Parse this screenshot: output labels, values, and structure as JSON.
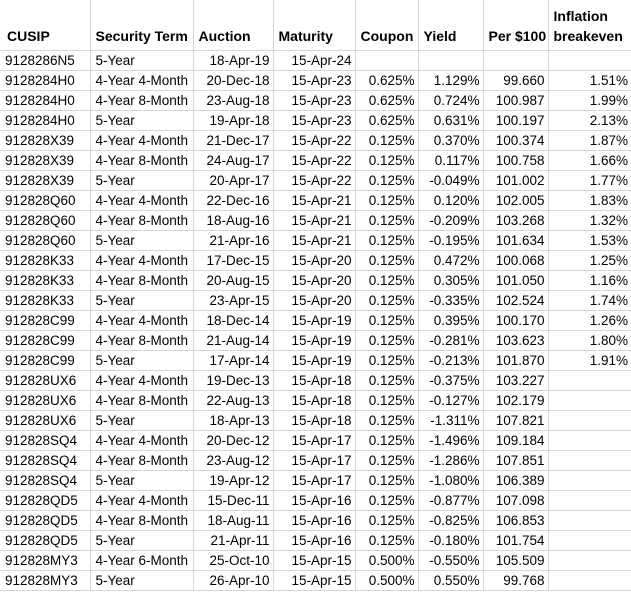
{
  "table": {
    "columns": [
      {
        "key": "cusip",
        "label": "CUSIP"
      },
      {
        "key": "term",
        "label": "Security Term"
      },
      {
        "key": "auction",
        "label": "Auction"
      },
      {
        "key": "maturity",
        "label": "Maturity"
      },
      {
        "key": "coupon",
        "label": "Coupon"
      },
      {
        "key": "yield",
        "label": "Yield"
      },
      {
        "key": "per100",
        "label": "Per $100"
      },
      {
        "key": "breakeven",
        "label": "Inflation breakeven"
      }
    ],
    "rows": [
      [
        "9128286N5",
        "5-Year",
        "18-Apr-19",
        "15-Apr-24",
        "",
        "",
        "",
        ""
      ],
      [
        "9128284H0",
        "4-Year 4-Month",
        "20-Dec-18",
        "15-Apr-23",
        "0.625%",
        "1.129%",
        "99.660",
        "1.51%"
      ],
      [
        "9128284H0",
        "4-Year 8-Month",
        "23-Aug-18",
        "15-Apr-23",
        "0.625%",
        "0.724%",
        "100.987",
        "1.99%"
      ],
      [
        "9128284H0",
        "5-Year",
        "19-Apr-18",
        "15-Apr-23",
        "0.625%",
        "0.631%",
        "100.197",
        "2.13%"
      ],
      [
        "912828X39",
        "4-Year 4-Month",
        "21-Dec-17",
        "15-Apr-22",
        "0.125%",
        "0.370%",
        "100.374",
        "1.87%"
      ],
      [
        "912828X39",
        "4-Year 8-Month",
        "24-Aug-17",
        "15-Apr-22",
        "0.125%",
        "0.117%",
        "100.758",
        "1.66%"
      ],
      [
        "912828X39",
        "5-Year",
        "20-Apr-17",
        "15-Apr-22",
        "0.125%",
        "-0.049%",
        "101.002",
        "1.77%"
      ],
      [
        "912828Q60",
        "4-Year 4-Month",
        "22-Dec-16",
        "15-Apr-21",
        "0.125%",
        "0.120%",
        "102.005",
        "1.83%"
      ],
      [
        "912828Q60",
        "4-Year 8-Month",
        "18-Aug-16",
        "15-Apr-21",
        "0.125%",
        "-0.209%",
        "103.268",
        "1.32%"
      ],
      [
        "912828Q60",
        "5-Year",
        "21-Apr-16",
        "15-Apr-21",
        "0.125%",
        "-0.195%",
        "101.634",
        "1.53%"
      ],
      [
        "912828K33",
        "4-Year 4-Month",
        "17-Dec-15",
        "15-Apr-20",
        "0.125%",
        "0.472%",
        "100.068",
        "1.25%"
      ],
      [
        "912828K33",
        "4-Year 8-Month",
        "20-Aug-15",
        "15-Apr-20",
        "0.125%",
        "0.305%",
        "101.050",
        "1.16%"
      ],
      [
        "912828K33",
        "5-Year",
        "23-Apr-15",
        "15-Apr-20",
        "0.125%",
        "-0.335%",
        "102.524",
        "1.74%"
      ],
      [
        "912828C99",
        "4-Year 4-Month",
        "18-Dec-14",
        "15-Apr-19",
        "0.125%",
        "0.395%",
        "100.170",
        "1.26%"
      ],
      [
        "912828C99",
        "4-Year 8-Month",
        "21-Aug-14",
        "15-Apr-19",
        "0.125%",
        "-0.281%",
        "103.623",
        "1.80%"
      ],
      [
        "912828C99",
        "5-Year",
        "17-Apr-14",
        "15-Apr-19",
        "0.125%",
        "-0.213%",
        "101.870",
        "1.91%"
      ],
      [
        "912828UX6",
        "4-Year 4-Month",
        "19-Dec-13",
        "15-Apr-18",
        "0.125%",
        "-0.375%",
        "103.227",
        ""
      ],
      [
        "912828UX6",
        "4-Year 8-Month",
        "22-Aug-13",
        "15-Apr-18",
        "0.125%",
        "-0.127%",
        "102.179",
        ""
      ],
      [
        "912828UX6",
        "5-Year",
        "18-Apr-13",
        "15-Apr-18",
        "0.125%",
        "-1.311%",
        "107.821",
        ""
      ],
      [
        "912828SQ4",
        "4-Year 4-Month",
        "20-Dec-12",
        "15-Apr-17",
        "0.125%",
        "-1.496%",
        "109.184",
        ""
      ],
      [
        "912828SQ4",
        "4-Year 8-Month",
        "23-Aug-12",
        "15-Apr-17",
        "0.125%",
        "-1.286%",
        "107.851",
        ""
      ],
      [
        "912828SQ4",
        "5-Year",
        "19-Apr-12",
        "15-Apr-17",
        "0.125%",
        "-1.080%",
        "106.389",
        ""
      ],
      [
        "912828QD5",
        "4-Year 4-Month",
        "15-Dec-11",
        "15-Apr-16",
        "0.125%",
        "-0.877%",
        "107.098",
        ""
      ],
      [
        "912828QD5",
        "4-Year 8-Month",
        "18-Aug-11",
        "15-Apr-16",
        "0.125%",
        "-0.825%",
        "106.853",
        ""
      ],
      [
        "912828QD5",
        "5-Year",
        "21-Apr-11",
        "15-Apr-16",
        "0.125%",
        "-0.180%",
        "101.754",
        ""
      ],
      [
        "912828MY3",
        "4-Year 6-Month",
        "25-Oct-10",
        "15-Apr-15",
        "0.500%",
        "-0.550%",
        "105.509",
        ""
      ],
      [
        "912828MY3",
        "5-Year",
        "26-Apr-10",
        "15-Apr-15",
        "0.500%",
        "0.550%",
        "99.768",
        ""
      ]
    ]
  }
}
